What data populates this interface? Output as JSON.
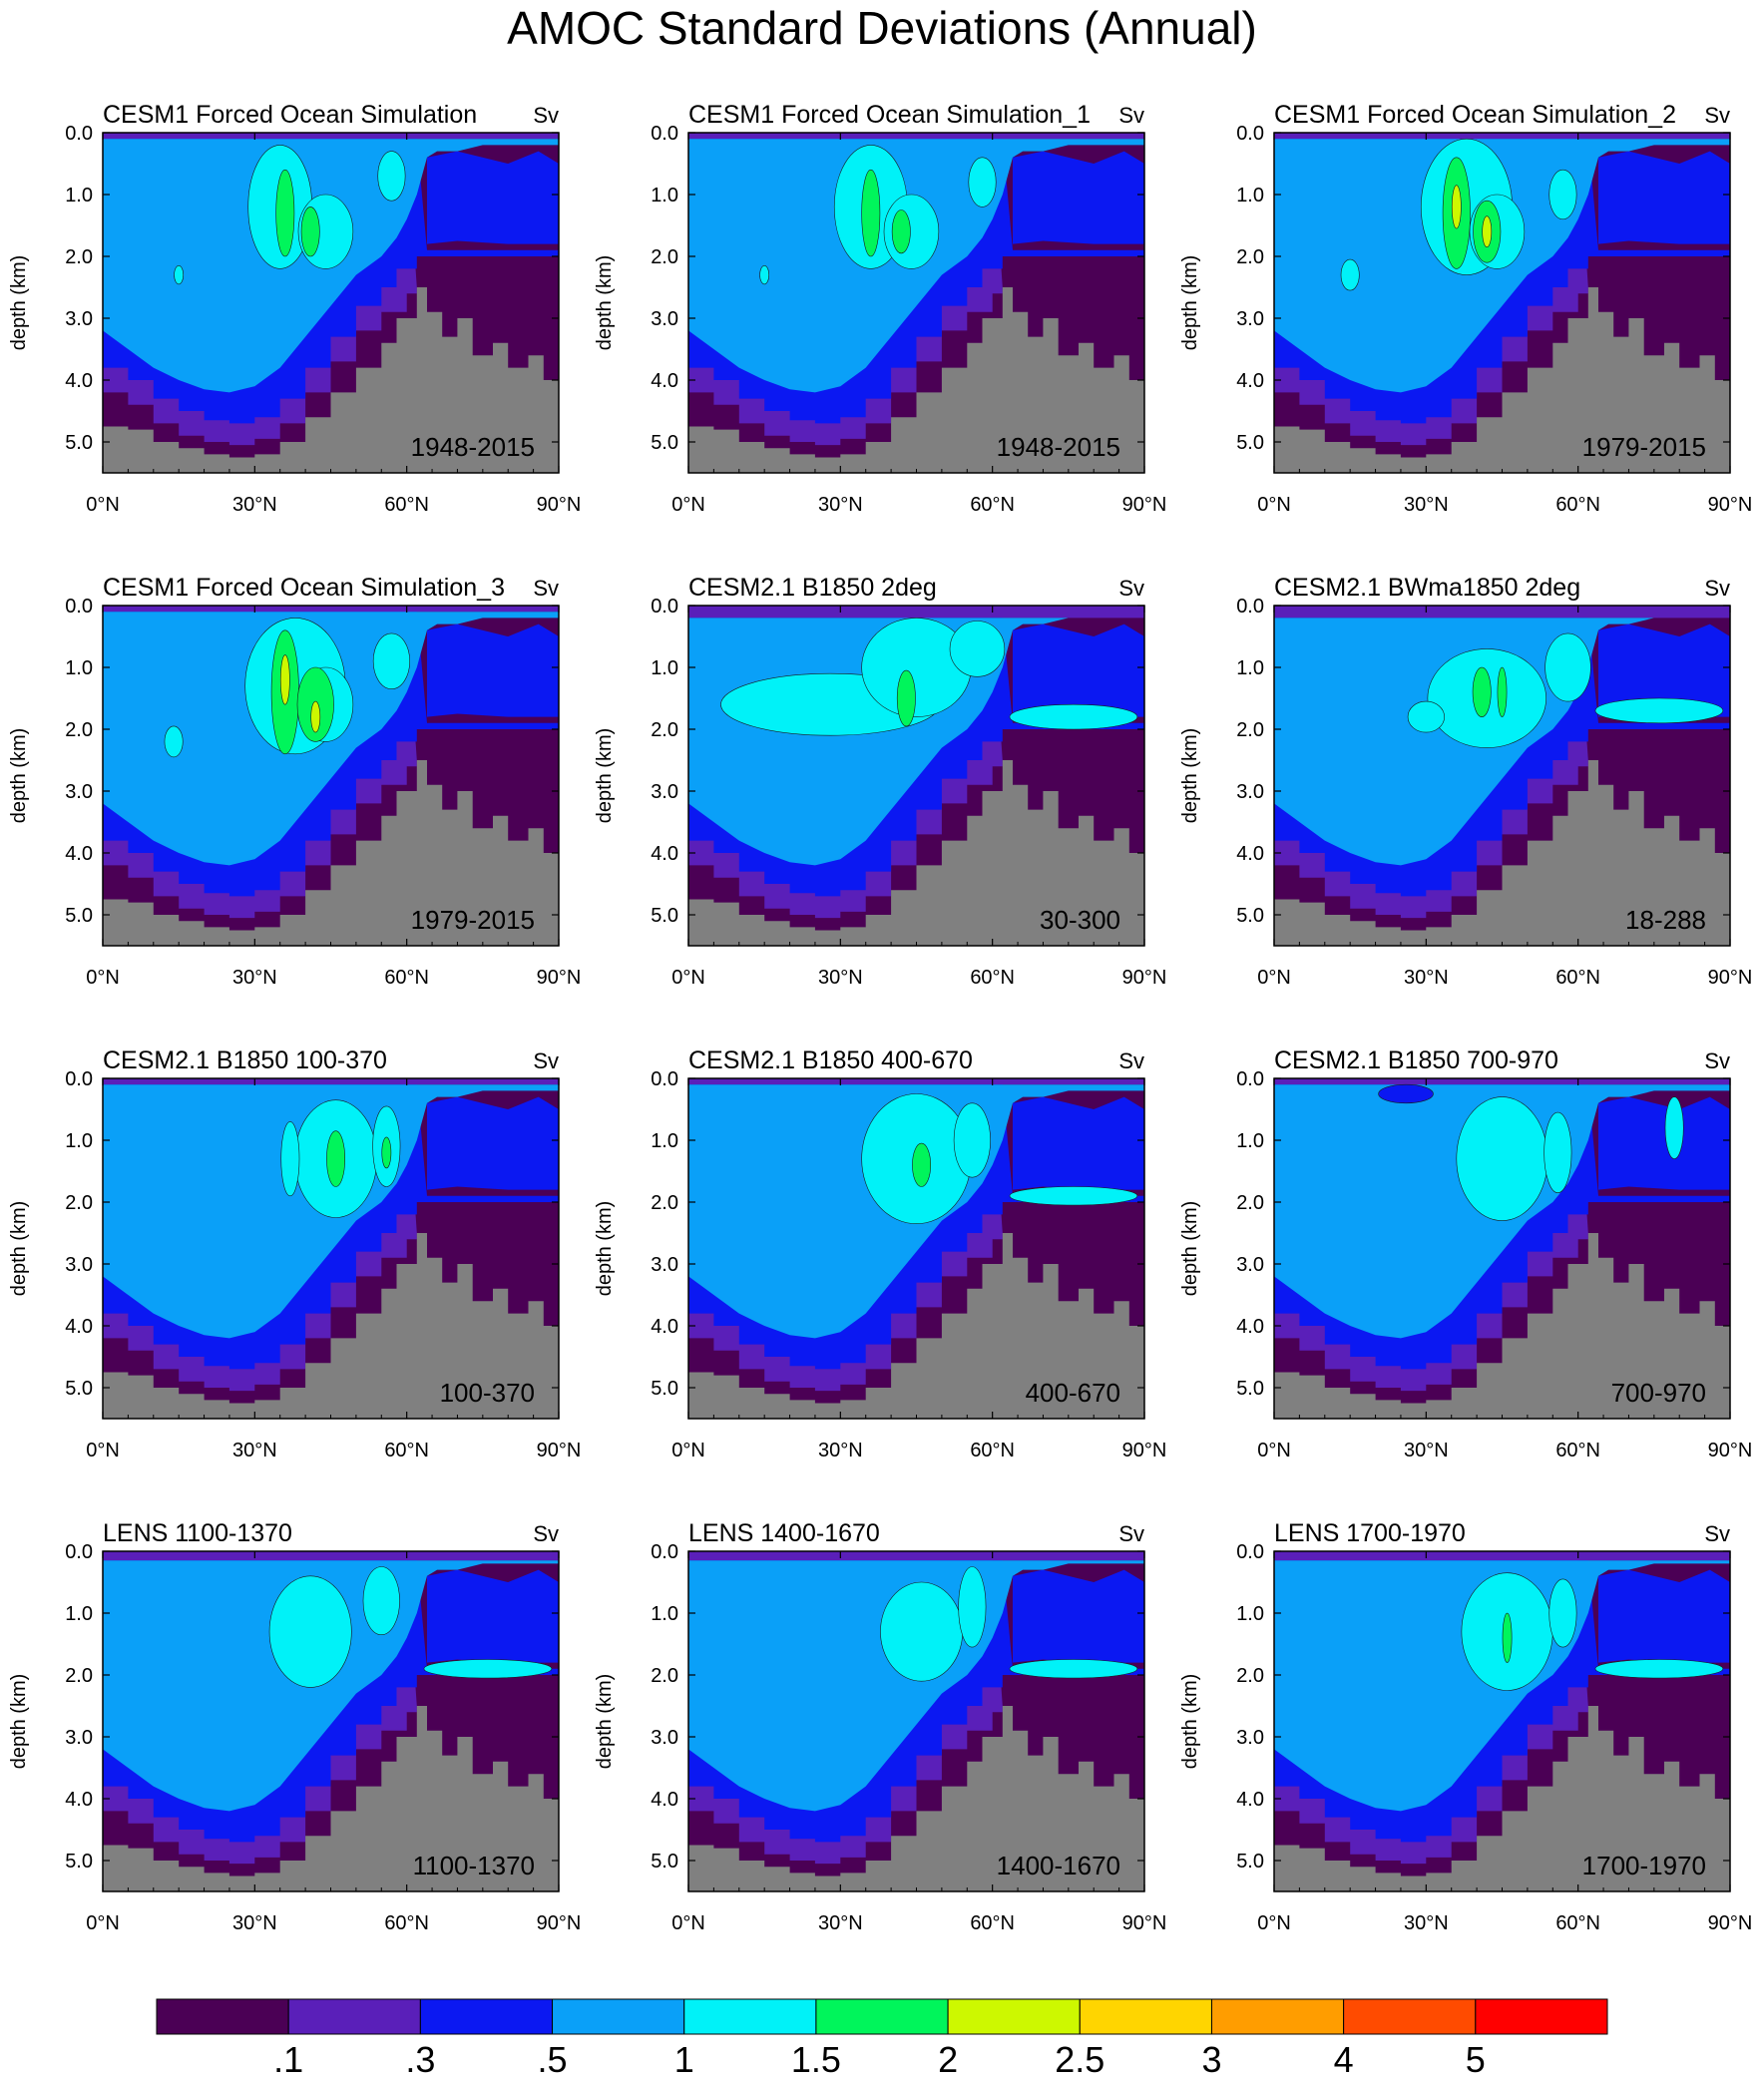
{
  "title": "AMOC Standard Deviations (Annual)",
  "units_label": "Sv",
  "ylabel": "depth (km)",
  "y_ticks": [
    "0.0",
    "1.0",
    "2.0",
    "3.0",
    "4.0",
    "5.0"
  ],
  "x_ticks": [
    "0°N",
    "30°N",
    "60°N",
    "90°N"
  ],
  "colors": {
    "land": "#808080",
    "levels": [
      "#4b0055",
      "#5a1fb9",
      "#0b18f2",
      "#0aa0f8",
      "#00f2f8",
      "#00f55b",
      "#cdf800",
      "#ffd500",
      "#ff9d00",
      "#ff4b00",
      "#ff0000"
    ]
  },
  "colorbar": {
    "labels": [
      ".1",
      ".3",
      ".5",
      "1",
      "1.5",
      "2",
      "2.5",
      "3",
      "4",
      "5"
    ]
  },
  "chart_data": [
    {
      "type": "heatmap",
      "title": "CESM1 Forced Ocean Simulation",
      "units": "Sv",
      "period": "1948-2015",
      "xlim": [
        0,
        90
      ],
      "ylim": [
        5.5,
        0
      ],
      "ylabel": "depth (km)",
      "surface_depth_km": 0.1,
      "cells": [
        {
          "x": 35,
          "y": 1.2,
          "w": 7,
          "h": 2.0,
          "level": 4
        },
        {
          "x": 44,
          "y": 1.6,
          "w": 6,
          "h": 1.2,
          "level": 4
        },
        {
          "x": 36,
          "y": 1.3,
          "w": 2,
          "h": 1.4,
          "level": 5
        },
        {
          "x": 41,
          "y": 1.6,
          "w": 2,
          "h": 0.8,
          "level": 5
        },
        {
          "x": 57,
          "y": 0.7,
          "w": 3,
          "h": 0.8,
          "level": 4
        },
        {
          "x": 15,
          "y": 2.3,
          "w": 1,
          "h": 0.3,
          "level": 4
        }
      ]
    },
    {
      "type": "heatmap",
      "title": "CESM1 Forced Ocean Simulation_1",
      "units": "Sv",
      "period": "1948-2015",
      "xlim": [
        0,
        90
      ],
      "ylim": [
        5.5,
        0
      ],
      "ylabel": "depth (km)",
      "surface_depth_km": 0.1,
      "cells": [
        {
          "x": 36,
          "y": 1.2,
          "w": 8,
          "h": 2.0,
          "level": 4
        },
        {
          "x": 44,
          "y": 1.6,
          "w": 6,
          "h": 1.2,
          "level": 4
        },
        {
          "x": 36,
          "y": 1.3,
          "w": 2,
          "h": 1.4,
          "level": 5
        },
        {
          "x": 42,
          "y": 1.6,
          "w": 2,
          "h": 0.7,
          "level": 5
        },
        {
          "x": 58,
          "y": 0.8,
          "w": 3,
          "h": 0.8,
          "level": 4
        },
        {
          "x": 15,
          "y": 2.3,
          "w": 1,
          "h": 0.3,
          "level": 4
        }
      ]
    },
    {
      "type": "heatmap",
      "title": "CESM1 Forced Ocean Simulation_2",
      "units": "Sv",
      "period": "1979-2015",
      "xlim": [
        0,
        90
      ],
      "ylim": [
        5.5,
        0
      ],
      "ylabel": "depth (km)",
      "surface_depth_km": 0.1,
      "cells": [
        {
          "x": 38,
          "y": 1.2,
          "w": 10,
          "h": 2.2,
          "level": 4
        },
        {
          "x": 44,
          "y": 1.6,
          "w": 6,
          "h": 1.2,
          "level": 4
        },
        {
          "x": 36,
          "y": 1.3,
          "w": 3,
          "h": 1.8,
          "level": 5
        },
        {
          "x": 42,
          "y": 1.6,
          "w": 3,
          "h": 1.0,
          "level": 5
        },
        {
          "x": 36,
          "y": 1.2,
          "w": 1,
          "h": 0.7,
          "level": 6
        },
        {
          "x": 42,
          "y": 1.6,
          "w": 1,
          "h": 0.5,
          "level": 6
        },
        {
          "x": 57,
          "y": 1.0,
          "w": 3,
          "h": 0.8,
          "level": 4
        },
        {
          "x": 15,
          "y": 2.3,
          "w": 2,
          "h": 0.5,
          "level": 4
        }
      ]
    },
    {
      "type": "heatmap",
      "title": "CESM1 Forced Ocean Simulation_3",
      "units": "Sv",
      "period": "1979-2015",
      "xlim": [
        0,
        90
      ],
      "ylim": [
        5.5,
        0
      ],
      "ylabel": "depth (km)",
      "surface_depth_km": 0.1,
      "cells": [
        {
          "x": 38,
          "y": 1.3,
          "w": 11,
          "h": 2.2,
          "level": 4
        },
        {
          "x": 44,
          "y": 1.6,
          "w": 6,
          "h": 1.2,
          "level": 4
        },
        {
          "x": 36,
          "y": 1.4,
          "w": 3,
          "h": 2.0,
          "level": 5
        },
        {
          "x": 42,
          "y": 1.6,
          "w": 4,
          "h": 1.2,
          "level": 5
        },
        {
          "x": 36,
          "y": 1.2,
          "w": 1,
          "h": 0.8,
          "level": 6
        },
        {
          "x": 42,
          "y": 1.8,
          "w": 1,
          "h": 0.5,
          "level": 6
        },
        {
          "x": 57,
          "y": 0.9,
          "w": 4,
          "h": 0.9,
          "level": 4
        },
        {
          "x": 14,
          "y": 2.2,
          "w": 2,
          "h": 0.5,
          "level": 4
        }
      ]
    },
    {
      "type": "heatmap",
      "title": "CESM2.1 B1850 2deg",
      "units": "Sv",
      "period": "30-300",
      "xlim": [
        0,
        90
      ],
      "ylim": [
        5.5,
        0
      ],
      "ylabel": "depth (km)",
      "surface_depth_km": 0.2,
      "cells": [
        {
          "x": 28,
          "y": 1.6,
          "w": 24,
          "h": 1.0,
          "level": 4
        },
        {
          "x": 45,
          "y": 1.0,
          "w": 12,
          "h": 1.6,
          "level": 4
        },
        {
          "x": 57,
          "y": 0.7,
          "w": 6,
          "h": 0.9,
          "level": 4
        },
        {
          "x": 43,
          "y": 1.5,
          "w": 2,
          "h": 0.9,
          "level": 5
        },
        {
          "x": 76,
          "y": 1.8,
          "w": 14,
          "h": 0.4,
          "level": 4
        }
      ]
    },
    {
      "type": "heatmap",
      "title": "CESM2.1 BWma1850 2deg",
      "units": "Sv",
      "period": "18-288",
      "xlim": [
        0,
        90
      ],
      "ylim": [
        5.5,
        0
      ],
      "ylabel": "depth (km)",
      "surface_depth_km": 0.2,
      "cells": [
        {
          "x": 42,
          "y": 1.5,
          "w": 13,
          "h": 1.6,
          "level": 4
        },
        {
          "x": 30,
          "y": 1.8,
          "w": 4,
          "h": 0.5,
          "level": 4
        },
        {
          "x": 58,
          "y": 1.0,
          "w": 5,
          "h": 1.1,
          "level": 4
        },
        {
          "x": 41,
          "y": 1.4,
          "w": 2,
          "h": 0.8,
          "level": 5
        },
        {
          "x": 45,
          "y": 1.4,
          "w": 1,
          "h": 0.8,
          "level": 5
        },
        {
          "x": 76,
          "y": 1.7,
          "w": 14,
          "h": 0.4,
          "level": 4
        }
      ]
    },
    {
      "type": "heatmap",
      "title": "CESM2.1 B1850 100-370",
      "units": "Sv",
      "period": "100-370",
      "xlim": [
        0,
        90
      ],
      "ylim": [
        5.5,
        0
      ],
      "ylabel": "depth (km)",
      "surface_depth_km": 0.1,
      "cells": [
        {
          "x": 46,
          "y": 1.3,
          "w": 9,
          "h": 1.9,
          "level": 4
        },
        {
          "x": 37,
          "y": 1.3,
          "w": 2,
          "h": 1.2,
          "level": 4
        },
        {
          "x": 56,
          "y": 1.1,
          "w": 3,
          "h": 1.3,
          "level": 4
        },
        {
          "x": 46,
          "y": 1.3,
          "w": 2,
          "h": 0.9,
          "level": 5
        },
        {
          "x": 56,
          "y": 1.2,
          "w": 1,
          "h": 0.5,
          "level": 5
        }
      ]
    },
    {
      "type": "heatmap",
      "title": "CESM2.1 B1850 400-670",
      "units": "Sv",
      "period": "400-670",
      "xlim": [
        0,
        90
      ],
      "ylim": [
        5.5,
        0
      ],
      "ylabel": "depth (km)",
      "surface_depth_km": 0.1,
      "cells": [
        {
          "x": 45,
          "y": 1.3,
          "w": 12,
          "h": 2.1,
          "level": 4
        },
        {
          "x": 56,
          "y": 1.0,
          "w": 4,
          "h": 1.2,
          "level": 4
        },
        {
          "x": 46,
          "y": 1.4,
          "w": 2,
          "h": 0.7,
          "level": 5
        },
        {
          "x": 76,
          "y": 1.9,
          "w": 14,
          "h": 0.3,
          "level": 4
        }
      ]
    },
    {
      "type": "heatmap",
      "title": "CESM2.1 B1850 700-970",
      "units": "Sv",
      "period": "700-970",
      "xlim": [
        0,
        90
      ],
      "ylim": [
        5.5,
        0
      ],
      "ylabel": "depth (km)",
      "surface_depth_km": 0.1,
      "cells": [
        {
          "x": 45,
          "y": 1.3,
          "w": 10,
          "h": 2.0,
          "level": 4
        },
        {
          "x": 56,
          "y": 1.2,
          "w": 3,
          "h": 1.3,
          "level": 4
        },
        {
          "x": 79,
          "y": 0.8,
          "w": 2,
          "h": 1.0,
          "level": 4
        },
        {
          "x": 26,
          "y": 0.25,
          "w": 6,
          "h": 0.3,
          "level": 2
        }
      ]
    },
    {
      "type": "heatmap",
      "title": "LENS 1100-1370",
      "units": "Sv",
      "period": "1100-1370",
      "xlim": [
        0,
        90
      ],
      "ylim": [
        5.5,
        0
      ],
      "ylabel": "depth (km)",
      "surface_depth_km": 0.15,
      "cells": [
        {
          "x": 41,
          "y": 1.3,
          "w": 9,
          "h": 1.8,
          "level": 4
        },
        {
          "x": 55,
          "y": 0.8,
          "w": 4,
          "h": 1.1,
          "level": 4
        },
        {
          "x": 76,
          "y": 1.9,
          "w": 14,
          "h": 0.3,
          "level": 4
        }
      ]
    },
    {
      "type": "heatmap",
      "title": "LENS 1400-1670",
      "units": "Sv",
      "period": "1400-1670",
      "xlim": [
        0,
        90
      ],
      "ylim": [
        5.5,
        0
      ],
      "ylabel": "depth (km)",
      "surface_depth_km": 0.15,
      "cells": [
        {
          "x": 46,
          "y": 1.3,
          "w": 9,
          "h": 1.6,
          "level": 4
        },
        {
          "x": 56,
          "y": 0.9,
          "w": 3,
          "h": 1.3,
          "level": 4
        },
        {
          "x": 76,
          "y": 1.9,
          "w": 14,
          "h": 0.3,
          "level": 4
        }
      ]
    },
    {
      "type": "heatmap",
      "title": "LENS 1700-1970",
      "units": "Sv",
      "period": "1700-1970",
      "xlim": [
        0,
        90
      ],
      "ylim": [
        5.5,
        0
      ],
      "ylabel": "depth (km)",
      "surface_depth_km": 0.15,
      "cells": [
        {
          "x": 46,
          "y": 1.3,
          "w": 10,
          "h": 1.9,
          "level": 4
        },
        {
          "x": 57,
          "y": 1.0,
          "w": 3,
          "h": 1.1,
          "level": 4
        },
        {
          "x": 46,
          "y": 1.4,
          "w": 1,
          "h": 0.8,
          "level": 5
        },
        {
          "x": 76,
          "y": 1.9,
          "w": 14,
          "h": 0.3,
          "level": 4
        }
      ]
    }
  ]
}
